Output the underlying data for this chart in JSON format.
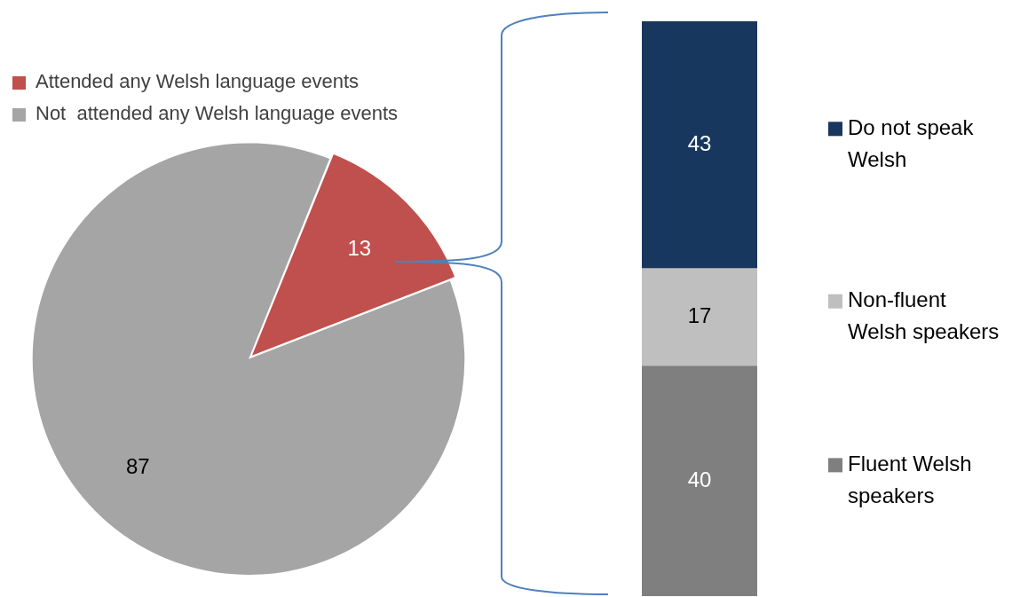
{
  "chart_data": [
    {
      "type": "pie",
      "categories": [
        "Attended any Welsh language events",
        "Not  attended any Welsh language events"
      ],
      "values": [
        13,
        87
      ],
      "colors": [
        "#c0504d",
        "#a5a5a5"
      ],
      "data_labels": true,
      "legend": "top left"
    },
    {
      "type": "bar",
      "stacked": true,
      "categories": [
        null
      ],
      "series": [
        {
          "name": "Fluent Welsh speakers",
          "color": "#7f7f7f",
          "values": [
            40
          ]
        },
        {
          "name": "Non-fluent Welsh speakers",
          "color": "#bfbfbf",
          "values": [
            17
          ]
        },
        {
          "name": "Do not speak Welsh",
          "color": "#17375e",
          "values": [
            43
          ]
        }
      ],
      "data_labels": true,
      "legend": "right",
      "tick_labels": false
    }
  ]
}
